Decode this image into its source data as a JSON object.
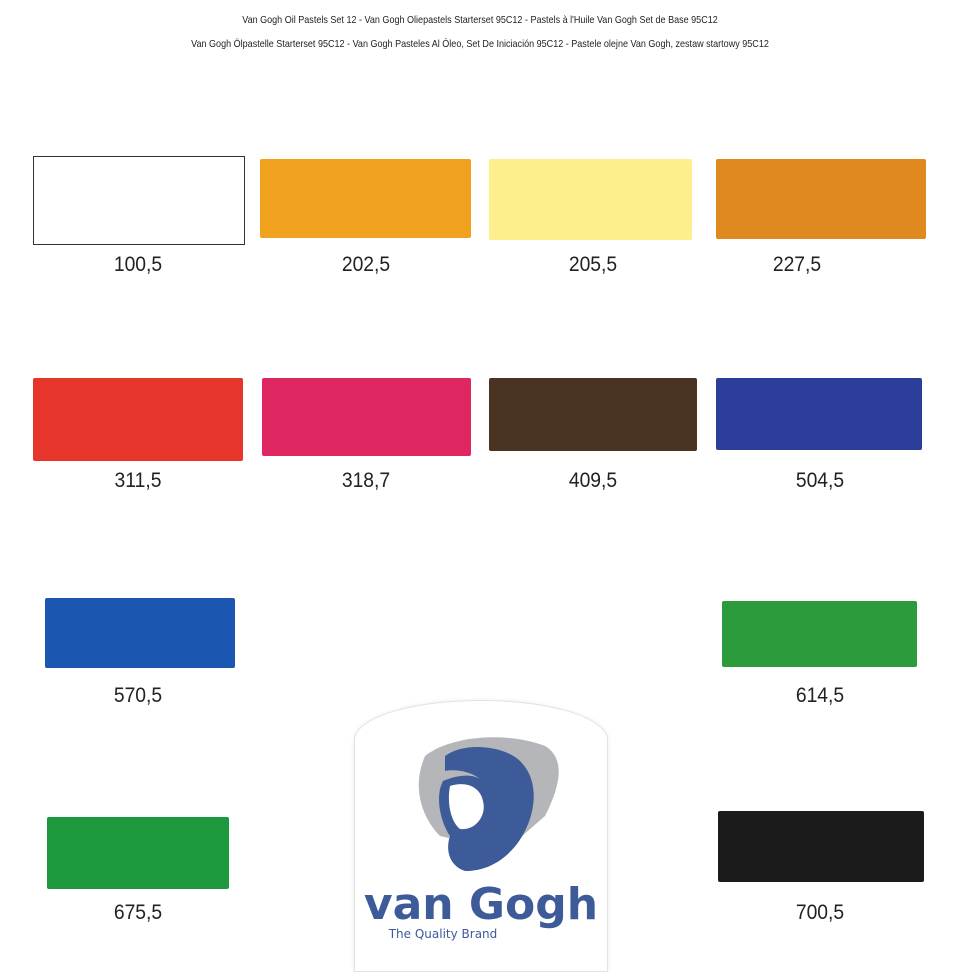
{
  "header": {
    "line1": "Van Gogh Oil Pastels Set 12 - Van Gogh Oliepastels Starterset 95C12 - Pastels à l'Huile Van Gogh Set de Base 95C12",
    "line2": "Van Gogh Ölpastelle Starterset 95C12 - Van Gogh Pasteles Al Óleo, Set De Iniciación 95C12 - Pastele olejne Van Gogh, zestaw startowy 95C12"
  },
  "swatches": [
    {
      "code": "100,5",
      "color": "#ffffff"
    },
    {
      "code": "202,5",
      "color": "#f0a11e"
    },
    {
      "code": "205,5",
      "color": "#fcef8c"
    },
    {
      "code": "227,5",
      "color": "#e0891f"
    },
    {
      "code": "311,5",
      "color": "#e6352a"
    },
    {
      "code": "318,7",
      "color": "#de2660"
    },
    {
      "code": "409,5",
      "color": "#4a3323"
    },
    {
      "code": "504,5",
      "color": "#2b3e9a"
    },
    {
      "code": "570,5",
      "color": "#1b56b0"
    },
    {
      "code": "614,5",
      "color": "#2c9b3c"
    },
    {
      "code": "675,5",
      "color": "#1b993c"
    },
    {
      "code": "700,5",
      "color": "#1b1b1b"
    }
  ],
  "logo": {
    "brand": "van Gogh",
    "tagline": "The Quality Brand",
    "brand_color": "#3d5a99",
    "shadow_color": "#b4b6b9"
  }
}
